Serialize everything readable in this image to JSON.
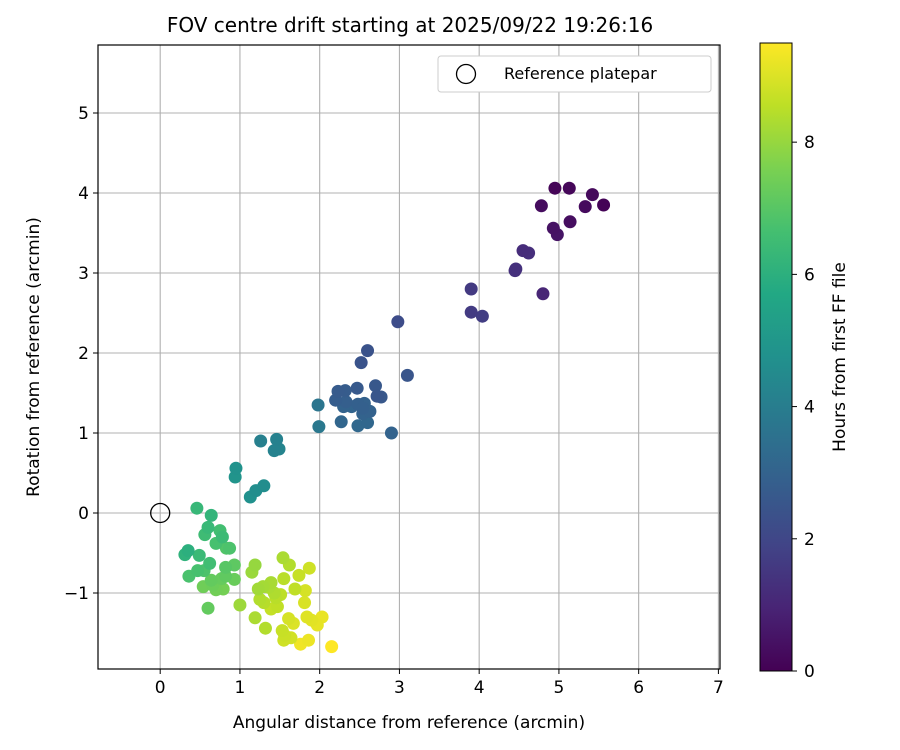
{
  "chart_data": {
    "type": "scatter",
    "title": "FOV centre drift starting at 2025/09/22 19:26:16",
    "xlabel": "Angular distance from reference (arcmin)",
    "ylabel": "Rotation from reference (arcmin)",
    "xlim": [
      -0.78,
      7.02
    ],
    "ylim": [
      -1.95,
      5.85
    ],
    "xticks": [
      0,
      1,
      2,
      3,
      4,
      5,
      6,
      7
    ],
    "yticks": [
      -1,
      0,
      1,
      2,
      3,
      4,
      5
    ],
    "grid": true,
    "legend": {
      "placement": "top-right",
      "entries": [
        "Reference platepar"
      ]
    },
    "reference_point": {
      "x": 0,
      "y": 0,
      "label": "Reference platepar"
    },
    "colorbar": {
      "label": "Hours from first FF file",
      "colormap": "viridis",
      "range": [
        0,
        9.5
      ],
      "ticks": [
        0,
        2,
        4,
        6,
        8
      ]
    },
    "series": [
      {
        "points": [
          [
            4.95,
            4.06,
            0.1
          ],
          [
            5.13,
            4.06,
            0.15
          ],
          [
            5.42,
            3.98,
            0.2
          ],
          [
            4.78,
            3.84,
            0.3
          ],
          [
            5.33,
            3.83,
            0.25
          ],
          [
            5.56,
            3.85,
            0.05
          ],
          [
            5.14,
            3.64,
            0.35
          ],
          [
            4.93,
            3.56,
            0.45
          ],
          [
            4.98,
            3.48,
            0.5
          ],
          [
            4.55,
            3.28,
            1.2
          ],
          [
            4.62,
            3.25,
            1.25
          ],
          [
            4.45,
            3.03,
            1.3
          ],
          [
            4.46,
            3.05,
            1.35
          ],
          [
            4.8,
            2.74,
            1.0
          ],
          [
            3.9,
            2.8,
            1.6
          ],
          [
            3.9,
            2.51,
            1.65
          ],
          [
            4.04,
            2.46,
            1.7
          ],
          [
            2.98,
            2.39,
            2.2
          ],
          [
            2.6,
            2.03,
            2.4
          ],
          [
            2.52,
            1.88,
            2.45
          ],
          [
            3.1,
            1.72,
            2.5
          ],
          [
            2.7,
            1.59,
            2.6
          ],
          [
            2.23,
            1.52,
            2.7
          ],
          [
            2.32,
            1.53,
            2.75
          ],
          [
            2.47,
            1.56,
            2.65
          ],
          [
            2.72,
            1.46,
            2.55
          ],
          [
            2.77,
            1.45,
            2.6
          ],
          [
            2.2,
            1.41,
            2.8
          ],
          [
            2.33,
            1.39,
            2.85
          ],
          [
            2.48,
            1.36,
            2.9
          ],
          [
            2.56,
            1.37,
            2.95
          ],
          [
            2.3,
            1.33,
            3.0
          ],
          [
            2.4,
            1.33,
            3.05
          ],
          [
            2.54,
            1.31,
            2.9
          ],
          [
            2.63,
            1.27,
            2.95
          ],
          [
            2.54,
            1.24,
            3.0
          ],
          [
            2.27,
            1.14,
            3.1
          ],
          [
            2.6,
            1.13,
            3.15
          ],
          [
            2.48,
            1.09,
            3.2
          ],
          [
            2.9,
            1.0,
            3.0
          ],
          [
            1.98,
            1.35,
            3.7
          ],
          [
            1.99,
            1.08,
            3.8
          ],
          [
            1.26,
            0.9,
            4.1
          ],
          [
            1.46,
            0.92,
            4.15
          ],
          [
            1.43,
            0.78,
            4.2
          ],
          [
            1.49,
            0.8,
            4.25
          ],
          [
            0.95,
            0.56,
            4.8
          ],
          [
            0.94,
            0.45,
            4.9
          ],
          [
            1.3,
            0.34,
            4.6
          ],
          [
            1.2,
            0.28,
            4.65
          ],
          [
            1.13,
            0.2,
            4.75
          ],
          [
            0.46,
            0.06,
            6.3
          ],
          [
            0.64,
            -0.03,
            6.2
          ],
          [
            0.6,
            -0.18,
            6.35
          ],
          [
            0.75,
            -0.22,
            6.6
          ],
          [
            0.56,
            -0.27,
            6.5
          ],
          [
            0.78,
            -0.3,
            6.45
          ],
          [
            0.7,
            -0.38,
            6.7
          ],
          [
            0.87,
            -0.44,
            6.8
          ],
          [
            0.83,
            -0.44,
            6.9
          ],
          [
            0.35,
            -0.47,
            6.0
          ],
          [
            0.31,
            -0.52,
            6.1
          ],
          [
            0.49,
            -0.53,
            6.4
          ],
          [
            0.62,
            -0.63,
            6.55
          ],
          [
            0.93,
            -0.65,
            7.1
          ],
          [
            0.82,
            -0.68,
            7.0
          ],
          [
            0.55,
            -0.72,
            6.8
          ],
          [
            0.47,
            -0.72,
            6.7
          ],
          [
            0.36,
            -0.79,
            6.75
          ],
          [
            0.82,
            -0.79,
            7.15
          ],
          [
            0.64,
            -0.84,
            7.2
          ],
          [
            0.77,
            -0.82,
            7.25
          ],
          [
            0.93,
            -0.83,
            7.3
          ],
          [
            0.66,
            -0.9,
            7.35
          ],
          [
            0.54,
            -0.92,
            7.4
          ],
          [
            0.7,
            -0.96,
            7.45
          ],
          [
            0.79,
            -0.95,
            7.5
          ],
          [
            0.6,
            -1.19,
            7.2
          ],
          [
            1.19,
            -0.65,
            8.0
          ],
          [
            1.15,
            -0.74,
            8.05
          ],
          [
            1.0,
            -1.15,
            8.1
          ],
          [
            1.23,
            -0.95,
            8.15
          ],
          [
            1.29,
            -0.92,
            8.2
          ],
          [
            1.39,
            -0.87,
            8.25
          ],
          [
            1.36,
            -0.93,
            8.3
          ],
          [
            1.43,
            -1.0,
            8.35
          ],
          [
            1.25,
            -1.08,
            8.4
          ],
          [
            1.3,
            -1.12,
            8.45
          ],
          [
            1.45,
            -1.06,
            8.5
          ],
          [
            1.51,
            -1.02,
            8.55
          ],
          [
            1.47,
            -1.17,
            8.6
          ],
          [
            1.39,
            -1.2,
            8.65
          ],
          [
            1.54,
            -0.56,
            8.3
          ],
          [
            1.62,
            -0.65,
            8.4
          ],
          [
            1.55,
            -0.82,
            8.5
          ],
          [
            1.69,
            -0.95,
            8.6
          ],
          [
            1.74,
            -0.78,
            8.7
          ],
          [
            1.87,
            -0.69,
            8.8
          ],
          [
            1.82,
            -0.97,
            8.9
          ],
          [
            1.81,
            -1.12,
            8.95
          ],
          [
            1.19,
            -1.31,
            8.3
          ],
          [
            1.32,
            -1.44,
            8.4
          ],
          [
            1.53,
            -1.47,
            8.7
          ],
          [
            1.56,
            -1.53,
            8.75
          ],
          [
            1.55,
            -1.59,
            8.8
          ],
          [
            1.64,
            -1.56,
            8.85
          ],
          [
            1.61,
            -1.32,
            8.9
          ],
          [
            1.67,
            -1.38,
            9.0
          ],
          [
            1.84,
            -1.3,
            9.05
          ],
          [
            1.9,
            -1.34,
            9.1
          ],
          [
            1.97,
            -1.4,
            9.15
          ],
          [
            2.03,
            -1.3,
            9.2
          ],
          [
            1.86,
            -1.59,
            9.25
          ],
          [
            1.76,
            -1.64,
            9.3
          ],
          [
            2.15,
            -1.67,
            9.5
          ]
        ]
      }
    ]
  }
}
